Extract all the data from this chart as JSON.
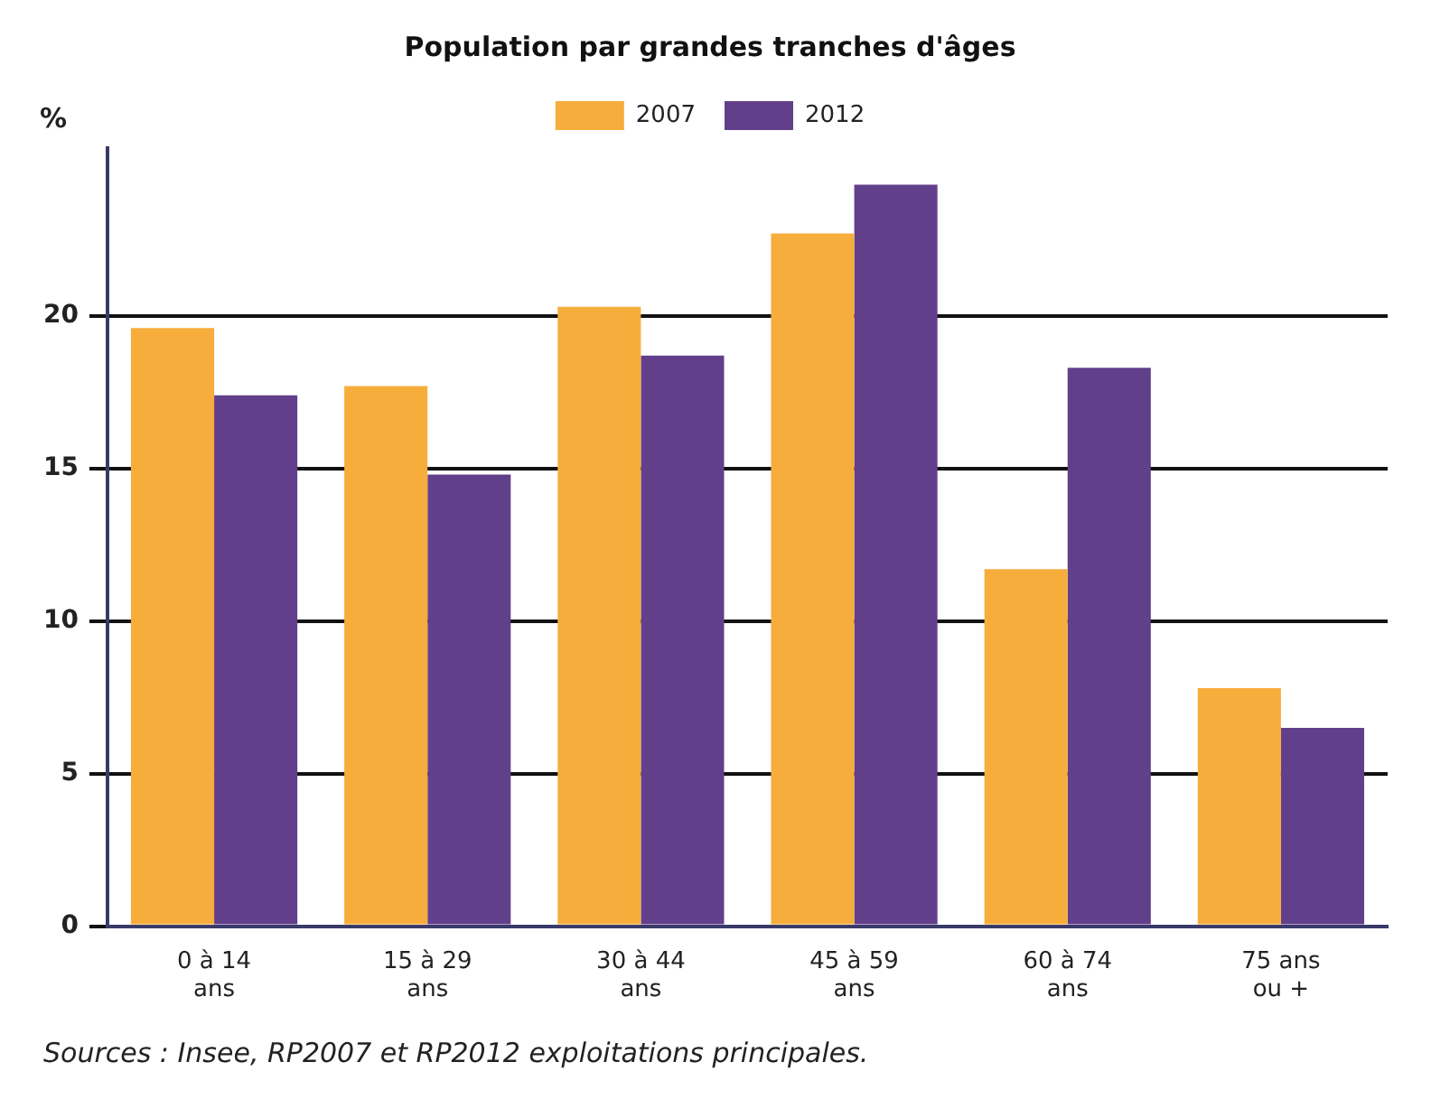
{
  "chart_data": {
    "type": "bar",
    "title": "Population par grandes tranches d'âges",
    "ylabel": "%",
    "categories": [
      "0 à 14 ans",
      "15 à 29 ans",
      "30 à 44 ans",
      "45 à 59 ans",
      "60 à 74 ans",
      "75 ans ou +"
    ],
    "series": [
      {
        "name": "2007",
        "color": "#f7ad3c",
        "values": [
          19.6,
          17.7,
          20.3,
          22.7,
          11.7,
          7.8
        ]
      },
      {
        "name": "2012",
        "color": "#623f8b",
        "values": [
          17.4,
          14.8,
          18.7,
          24.3,
          18.3,
          6.5
        ]
      }
    ],
    "ylim": [
      0,
      25.5
    ],
    "yticks": [
      0,
      5,
      10,
      15,
      20
    ],
    "grid": "y",
    "legend": "top",
    "annotations": [
      "Sources : Insee, RP2007 et RP2012 exploitations principales."
    ]
  }
}
